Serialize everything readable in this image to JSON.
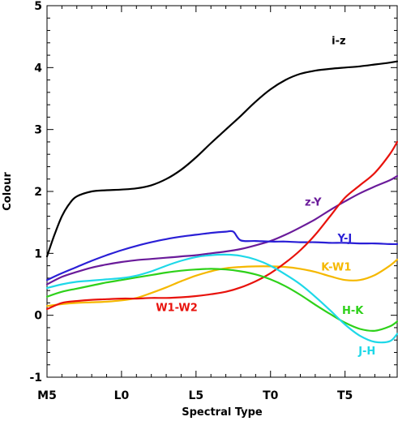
{
  "chart_data": {
    "type": "line",
    "title": "",
    "xlabel": "Spectral Type",
    "ylabel": "Colour",
    "xlim": [
      0,
      23.5
    ],
    "ylim": [
      -1,
      5
    ],
    "x_ticks": [
      {
        "value": 0,
        "label": "M5"
      },
      {
        "value": 5,
        "label": "L0"
      },
      {
        "value": 10,
        "label": "L5"
      },
      {
        "value": 15,
        "label": "T0"
      },
      {
        "value": 20,
        "label": "T5"
      }
    ],
    "y_ticks": [
      {
        "value": -1,
        "label": "-1"
      },
      {
        "value": 0,
        "label": "0"
      },
      {
        "value": 1,
        "label": "1"
      },
      {
        "value": 2,
        "label": "2"
      },
      {
        "value": 3,
        "label": "3"
      },
      {
        "value": 4,
        "label": "4"
      },
      {
        "value": 5,
        "label": "5"
      }
    ],
    "grid": false,
    "series": [
      {
        "name": "i-z",
        "color": "#000000",
        "x": [
          0,
          0.5,
          1,
          1.5,
          2,
          3,
          4,
          5,
          6,
          7,
          8,
          9,
          10,
          11,
          12,
          13,
          14,
          15,
          16,
          17,
          18,
          19,
          20,
          21,
          22,
          23,
          23.5
        ],
        "y": [
          0.95,
          1.3,
          1.6,
          1.8,
          1.92,
          2.0,
          2.02,
          2.03,
          2.05,
          2.1,
          2.2,
          2.35,
          2.55,
          2.78,
          3.0,
          3.22,
          3.45,
          3.65,
          3.8,
          3.9,
          3.95,
          3.98,
          4.0,
          4.02,
          4.05,
          4.08,
          4.1
        ],
        "label_pos": [
          19.1,
          4.38
        ]
      },
      {
        "name": "z-Y",
        "color": "#6a1b9a",
        "x": [
          0,
          1,
          2,
          3,
          4,
          5,
          6,
          7,
          8,
          9,
          10,
          11,
          12,
          13,
          14,
          15,
          16,
          17,
          18,
          19,
          20,
          21,
          22,
          23,
          23.5
        ],
        "y": [
          0.5,
          0.62,
          0.7,
          0.77,
          0.82,
          0.86,
          0.89,
          0.91,
          0.93,
          0.95,
          0.97,
          1.0,
          1.03,
          1.07,
          1.13,
          1.2,
          1.3,
          1.42,
          1.55,
          1.7,
          1.84,
          1.97,
          2.08,
          2.18,
          2.25
        ],
        "label_pos": [
          17.3,
          1.77
        ]
      },
      {
        "name": "Y-J",
        "color": "#2a1fd6",
        "x": [
          0,
          1,
          2,
          3,
          4,
          5,
          6,
          7,
          8,
          9,
          10,
          11,
          12,
          12.5,
          13,
          14,
          15,
          16,
          17,
          18,
          19,
          20,
          21,
          22,
          23,
          23.5
        ],
        "y": [
          0.57,
          0.68,
          0.78,
          0.88,
          0.97,
          1.05,
          1.12,
          1.18,
          1.23,
          1.27,
          1.3,
          1.33,
          1.35,
          1.35,
          1.21,
          1.2,
          1.19,
          1.19,
          1.18,
          1.18,
          1.17,
          1.17,
          1.16,
          1.16,
          1.15,
          1.15
        ],
        "label_pos": [
          19.5,
          1.19
        ]
      },
      {
        "name": "K-W1",
        "color": "#f5b800",
        "x": [
          0,
          1,
          2,
          3,
          4,
          5,
          6,
          7,
          8,
          9,
          10,
          11,
          12,
          13,
          14,
          15,
          16,
          17,
          18,
          19,
          20,
          21,
          22,
          23,
          23.5
        ],
        "y": [
          0.15,
          0.18,
          0.2,
          0.21,
          0.22,
          0.24,
          0.28,
          0.36,
          0.45,
          0.55,
          0.64,
          0.71,
          0.76,
          0.78,
          0.79,
          0.79,
          0.78,
          0.75,
          0.7,
          0.63,
          0.57,
          0.57,
          0.65,
          0.8,
          0.9
        ],
        "label_pos": [
          18.4,
          0.72
        ]
      },
      {
        "name": "W1-W2",
        "color": "#e8120c",
        "x": [
          0,
          1,
          2,
          3,
          4,
          5,
          6,
          7,
          8,
          9,
          10,
          11,
          12,
          13,
          14,
          15,
          16,
          17,
          18,
          19,
          20,
          21,
          22,
          23,
          23.5
        ],
        "y": [
          0.1,
          0.2,
          0.23,
          0.25,
          0.26,
          0.27,
          0.27,
          0.28,
          0.28,
          0.29,
          0.31,
          0.34,
          0.38,
          0.45,
          0.55,
          0.68,
          0.85,
          1.05,
          1.3,
          1.6,
          1.9,
          2.1,
          2.3,
          2.6,
          2.8
        ],
        "label_pos": [
          7.3,
          0.07
        ]
      },
      {
        "name": "H-K",
        "color": "#2ed11a",
        "x": [
          0,
          1,
          2,
          3,
          4,
          5,
          6,
          7,
          8,
          9,
          10,
          11,
          12,
          13,
          14,
          15,
          16,
          17,
          18,
          19,
          20,
          21,
          22,
          23,
          23.5
        ],
        "y": [
          0.3,
          0.38,
          0.43,
          0.48,
          0.53,
          0.57,
          0.61,
          0.65,
          0.69,
          0.72,
          0.74,
          0.75,
          0.74,
          0.71,
          0.66,
          0.58,
          0.47,
          0.33,
          0.17,
          0.02,
          -0.12,
          -0.22,
          -0.25,
          -0.18,
          -0.1
        ],
        "label_pos": [
          19.8,
          0.02
        ]
      },
      {
        "name": "J-H",
        "color": "#1ed8e8",
        "x": [
          0,
          1,
          2,
          3,
          4,
          5,
          6,
          7,
          8,
          9,
          10,
          11,
          12,
          13,
          14,
          15,
          16,
          17,
          18,
          19,
          20,
          21,
          22,
          23,
          23.5
        ],
        "y": [
          0.44,
          0.5,
          0.54,
          0.56,
          0.58,
          0.6,
          0.64,
          0.71,
          0.8,
          0.88,
          0.94,
          0.97,
          0.98,
          0.96,
          0.9,
          0.8,
          0.66,
          0.5,
          0.3,
          0.08,
          -0.15,
          -0.33,
          -0.43,
          -0.42,
          -0.3
        ],
        "label_pos": [
          20.9,
          -0.63
        ]
      }
    ]
  }
}
